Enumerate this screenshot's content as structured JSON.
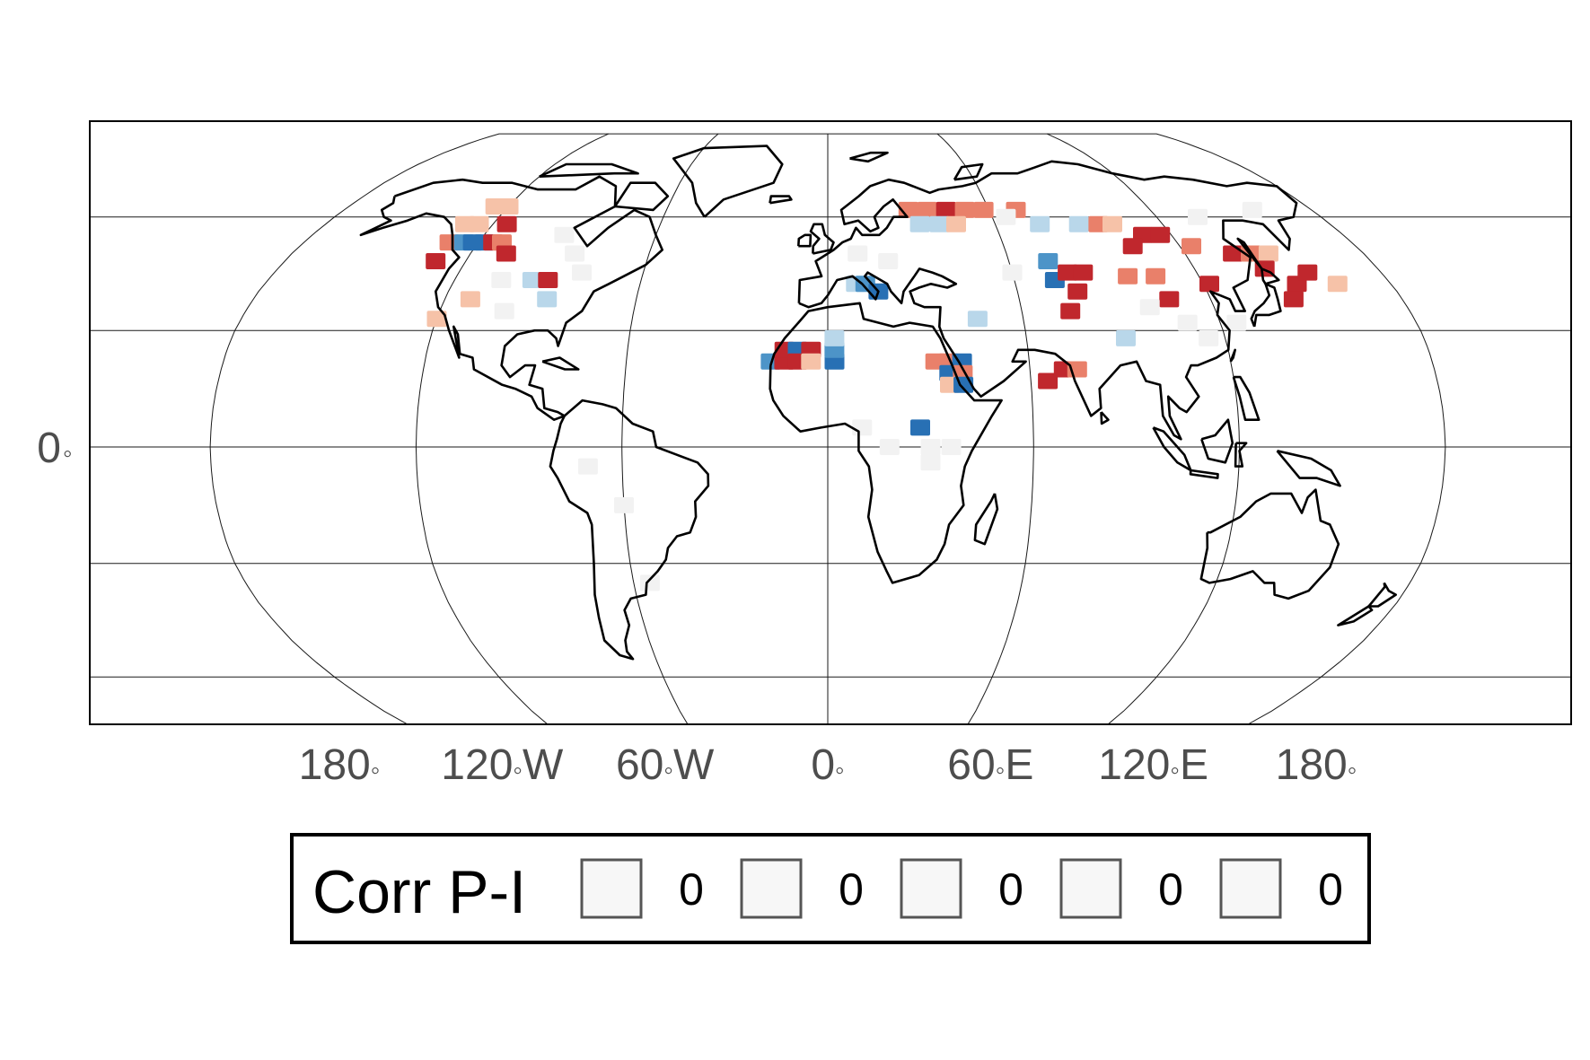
{
  "map": {
    "projection": "Robinson",
    "y_axis_labels": [
      {
        "lat": 0,
        "text": "0",
        "deg": "◦"
      }
    ],
    "x_axis_labels": [
      {
        "lon": -180,
        "text": "180",
        "deg": "◦",
        "suffix": ""
      },
      {
        "lon": -120,
        "text": "120",
        "deg": "◦",
        "suffix": "W"
      },
      {
        "lon": -60,
        "text": "60",
        "deg": "◦",
        "suffix": "W"
      },
      {
        "lon": 0,
        "text": "0",
        "deg": "◦",
        "suffix": ""
      },
      {
        "lon": 60,
        "text": "60",
        "deg": "◦",
        "suffix": "E"
      },
      {
        "lon": 120,
        "text": "120",
        "deg": "◦",
        "suffix": "E"
      },
      {
        "lon": 180,
        "text": "180",
        "deg": "◦",
        "suffix": ""
      }
    ],
    "graticule_lons": [
      -120,
      -60,
      0,
      60,
      120
    ],
    "graticule_lats": [
      60,
      30,
      0,
      -30,
      -60
    ],
    "colors": {
      "strong_positive": "#c0272d",
      "positive": "#e9806a",
      "weak_positive": "#f6c2a8",
      "neutral": "#f2f2f2",
      "weak_negative": "#b9d7ea",
      "negative": "#4d94c8",
      "strong_negative": "#2870b4",
      "coastline": "#000000",
      "grid": "#1a1a1a"
    },
    "cells": [
      {
        "lon": -125,
        "lat": 63,
        "c": "weak_positive"
      },
      {
        "lon": -120,
        "lat": 63,
        "c": "weak_positive"
      },
      {
        "lon": -125,
        "lat": 58,
        "c": "weak_positive"
      },
      {
        "lon": -130,
        "lat": 58,
        "c": "weak_positive"
      },
      {
        "lon": -115,
        "lat": 58,
        "c": "strong_positive"
      },
      {
        "lon": -130,
        "lat": 53,
        "c": "positive"
      },
      {
        "lon": -125,
        "lat": 53,
        "c": "negative"
      },
      {
        "lon": -122,
        "lat": 53,
        "c": "strong_negative"
      },
      {
        "lon": -118,
        "lat": 53,
        "c": "strong_negative"
      },
      {
        "lon": -115,
        "lat": 53,
        "c": "strong_positive"
      },
      {
        "lon": -112,
        "lat": 53,
        "c": "positive"
      },
      {
        "lon": -130,
        "lat": 48,
        "c": "strong_positive"
      },
      {
        "lon": -108,
        "lat": 50,
        "c": "strong_positive"
      },
      {
        "lon": -95,
        "lat": 43,
        "c": "weak_negative"
      },
      {
        "lon": -90,
        "lat": 43,
        "c": "strong_positive"
      },
      {
        "lon": -88,
        "lat": 38,
        "c": "weak_negative"
      },
      {
        "lon": -112,
        "lat": 38,
        "c": "weak_positive"
      },
      {
        "lon": -120,
        "lat": 33,
        "c": "weak_positive"
      },
      {
        "lon": -92,
        "lat": 55,
        "c": "neutral"
      },
      {
        "lon": -85,
        "lat": 50,
        "c": "neutral"
      },
      {
        "lon": -80,
        "lat": 45,
        "c": "neutral"
      },
      {
        "lon": -100,
        "lat": 35,
        "c": "neutral"
      },
      {
        "lon": -105,
        "lat": 43,
        "c": "neutral"
      },
      {
        "lon": -17,
        "lat": 22,
        "c": "negative"
      },
      {
        "lon": -13,
        "lat": 22,
        "c": "strong_positive"
      },
      {
        "lon": -13,
        "lat": 25,
        "c": "strong_positive"
      },
      {
        "lon": -9,
        "lat": 25,
        "c": "strong_negative"
      },
      {
        "lon": -5,
        "lat": 25,
        "c": "strong_positive"
      },
      {
        "lon": -9,
        "lat": 22,
        "c": "strong_positive"
      },
      {
        "lon": -5,
        "lat": 22,
        "c": "weak_positive"
      },
      {
        "lon": 2,
        "lat": 22,
        "c": "strong_negative"
      },
      {
        "lon": 2,
        "lat": 25,
        "c": "negative"
      },
      {
        "lon": 2,
        "lat": 28,
        "c": "weak_negative"
      },
      {
        "lon": 9,
        "lat": 42,
        "c": "weak_negative"
      },
      {
        "lon": 12,
        "lat": 42,
        "c": "negative"
      },
      {
        "lon": 16,
        "lat": 40,
        "c": "strong_negative"
      },
      {
        "lon": 32,
        "lat": 22,
        "c": "positive"
      },
      {
        "lon": 36,
        "lat": 22,
        "c": "positive"
      },
      {
        "lon": 40,
        "lat": 22,
        "c": "strong_negative"
      },
      {
        "lon": 36,
        "lat": 19,
        "c": "strong_negative"
      },
      {
        "lon": 40,
        "lat": 19,
        "c": "positive"
      },
      {
        "lon": 36,
        "lat": 16,
        "c": "weak_positive"
      },
      {
        "lon": 40,
        "lat": 16,
        "c": "strong_negative"
      },
      {
        "lon": 27,
        "lat": 5,
        "c": "strong_negative"
      },
      {
        "lon": 46,
        "lat": 33,
        "c": "weak_negative"
      },
      {
        "lon": 65,
        "lat": 17,
        "c": "strong_positive"
      },
      {
        "lon": 70,
        "lat": 20,
        "c": "strong_positive"
      },
      {
        "lon": 74,
        "lat": 20,
        "c": "positive"
      },
      {
        "lon": 30,
        "lat": 62,
        "c": "positive"
      },
      {
        "lon": 37,
        "lat": 62,
        "c": "positive"
      },
      {
        "lon": 44,
        "lat": 62,
        "c": "strong_positive"
      },
      {
        "lon": 51,
        "lat": 62,
        "c": "positive"
      },
      {
        "lon": 58,
        "lat": 62,
        "c": "positive"
      },
      {
        "lon": 33,
        "lat": 58,
        "c": "weak_negative"
      },
      {
        "lon": 40,
        "lat": 58,
        "c": "weak_negative"
      },
      {
        "lon": 46,
        "lat": 58,
        "c": "weak_positive"
      },
      {
        "lon": 70,
        "lat": 62,
        "c": "positive"
      },
      {
        "lon": 76,
        "lat": 58,
        "c": "weak_negative"
      },
      {
        "lon": 90,
        "lat": 58,
        "c": "weak_negative"
      },
      {
        "lon": 97,
        "lat": 58,
        "c": "positive"
      },
      {
        "lon": 102,
        "lat": 58,
        "c": "weak_positive"
      },
      {
        "lon": 110,
        "lat": 55,
        "c": "strong_positive"
      },
      {
        "lon": 116,
        "lat": 55,
        "c": "strong_positive"
      },
      {
        "lon": 104,
        "lat": 52,
        "c": "strong_positive"
      },
      {
        "lon": 124,
        "lat": 52,
        "c": "positive"
      },
      {
        "lon": 136,
        "lat": 50,
        "c": "strong_positive"
      },
      {
        "lon": 142,
        "lat": 50,
        "c": "positive"
      },
      {
        "lon": 148,
        "lat": 50,
        "c": "weak_positive"
      },
      {
        "lon": 73,
        "lat": 48,
        "c": "negative"
      },
      {
        "lon": 73,
        "lat": 43,
        "c": "strong_negative"
      },
      {
        "lon": 78,
        "lat": 45,
        "c": "strong_positive"
      },
      {
        "lon": 83,
        "lat": 45,
        "c": "strong_positive"
      },
      {
        "lon": 79,
        "lat": 40,
        "c": "strong_positive"
      },
      {
        "lon": 75,
        "lat": 35,
        "c": "strong_positive"
      },
      {
        "lon": 97,
        "lat": 44,
        "c": "positive"
      },
      {
        "lon": 106,
        "lat": 44,
        "c": "positive"
      },
      {
        "lon": 122,
        "lat": 42,
        "c": "strong_positive"
      },
      {
        "lon": 107,
        "lat": 38,
        "c": "strong_positive"
      },
      {
        "lon": 143,
        "lat": 46,
        "c": "strong_positive"
      },
      {
        "lon": 150,
        "lat": 42,
        "c": "strong_positive"
      },
      {
        "lon": 156,
        "lat": 45,
        "c": "strong_positive"
      },
      {
        "lon": 163,
        "lat": 42,
        "c": "weak_positive"
      },
      {
        "lon": 146,
        "lat": 38,
        "c": "strong_positive"
      },
      {
        "lon": 90,
        "lat": 28,
        "c": "weak_negative"
      },
      {
        "lon": 115,
        "lat": 28,
        "c": "neutral"
      },
      {
        "lon": 125,
        "lat": 32,
        "c": "neutral"
      },
      {
        "lon": 110,
        "lat": 32,
        "c": "neutral"
      },
      {
        "lon": 60,
        "lat": 45,
        "c": "neutral"
      },
      {
        "lon": 65,
        "lat": 60,
        "c": "neutral"
      },
      {
        "lon": 100,
        "lat": 36,
        "c": "neutral"
      },
      {
        "lon": 10,
        "lat": 5,
        "c": "neutral"
      },
      {
        "lon": 18,
        "lat": 0,
        "c": "neutral"
      },
      {
        "lon": 30,
        "lat": 0,
        "c": "neutral"
      },
      {
        "lon": 36,
        "lat": 0,
        "c": "neutral"
      },
      {
        "lon": 30,
        "lat": -4,
        "c": "neutral"
      },
      {
        "lon": -70,
        "lat": -5,
        "c": "neutral"
      },
      {
        "lon": -60,
        "lat": -15,
        "c": "neutral"
      },
      {
        "lon": -55,
        "lat": -35,
        "c": "neutral"
      },
      {
        "lon": 10,
        "lat": 50,
        "c": "neutral"
      },
      {
        "lon": 20,
        "lat": 48,
        "c": "neutral"
      },
      {
        "lon": 158,
        "lat": 62,
        "c": "neutral"
      },
      {
        "lon": 135,
        "lat": 60,
        "c": "neutral"
      }
    ]
  },
  "legend": {
    "title": "Corr P-I",
    "items": [
      {
        "label": "0",
        "color": "#f7f7f7"
      },
      {
        "label": "0",
        "color": "#f7f7f7"
      },
      {
        "label": "0",
        "color": "#f7f7f7"
      },
      {
        "label": "0",
        "color": "#f7f7f7"
      },
      {
        "label": "0",
        "color": "#f7f7f7"
      }
    ]
  }
}
